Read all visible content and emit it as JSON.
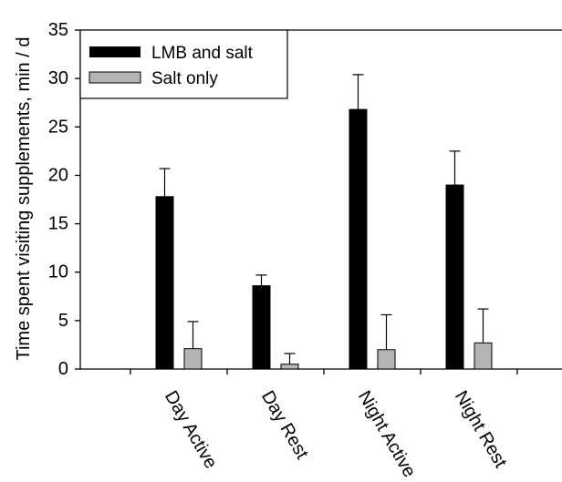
{
  "chart_data": {
    "type": "bar",
    "title": "",
    "xlabel": "",
    "ylabel": "Time spent visiting supplements, min / d",
    "ylim": [
      0,
      35
    ],
    "yticks": [
      0,
      5,
      10,
      15,
      20,
      25,
      30,
      35
    ],
    "categories": [
      "Day Active",
      "Day Rest",
      "Night Active",
      "Night Rest"
    ],
    "series": [
      {
        "name": "LMB and salt",
        "color": "#000000",
        "values": [
          17.8,
          8.6,
          26.8,
          19.0
        ],
        "errors": [
          2.9,
          1.1,
          3.6,
          3.5
        ]
      },
      {
        "name": "Salt only",
        "color": "#b4b4b4",
        "values": [
          2.1,
          0.5,
          2.0,
          2.7
        ],
        "errors": [
          2.8,
          1.1,
          3.6,
          3.5
        ]
      }
    ],
    "legend_position": "top-left",
    "grid": false
  }
}
